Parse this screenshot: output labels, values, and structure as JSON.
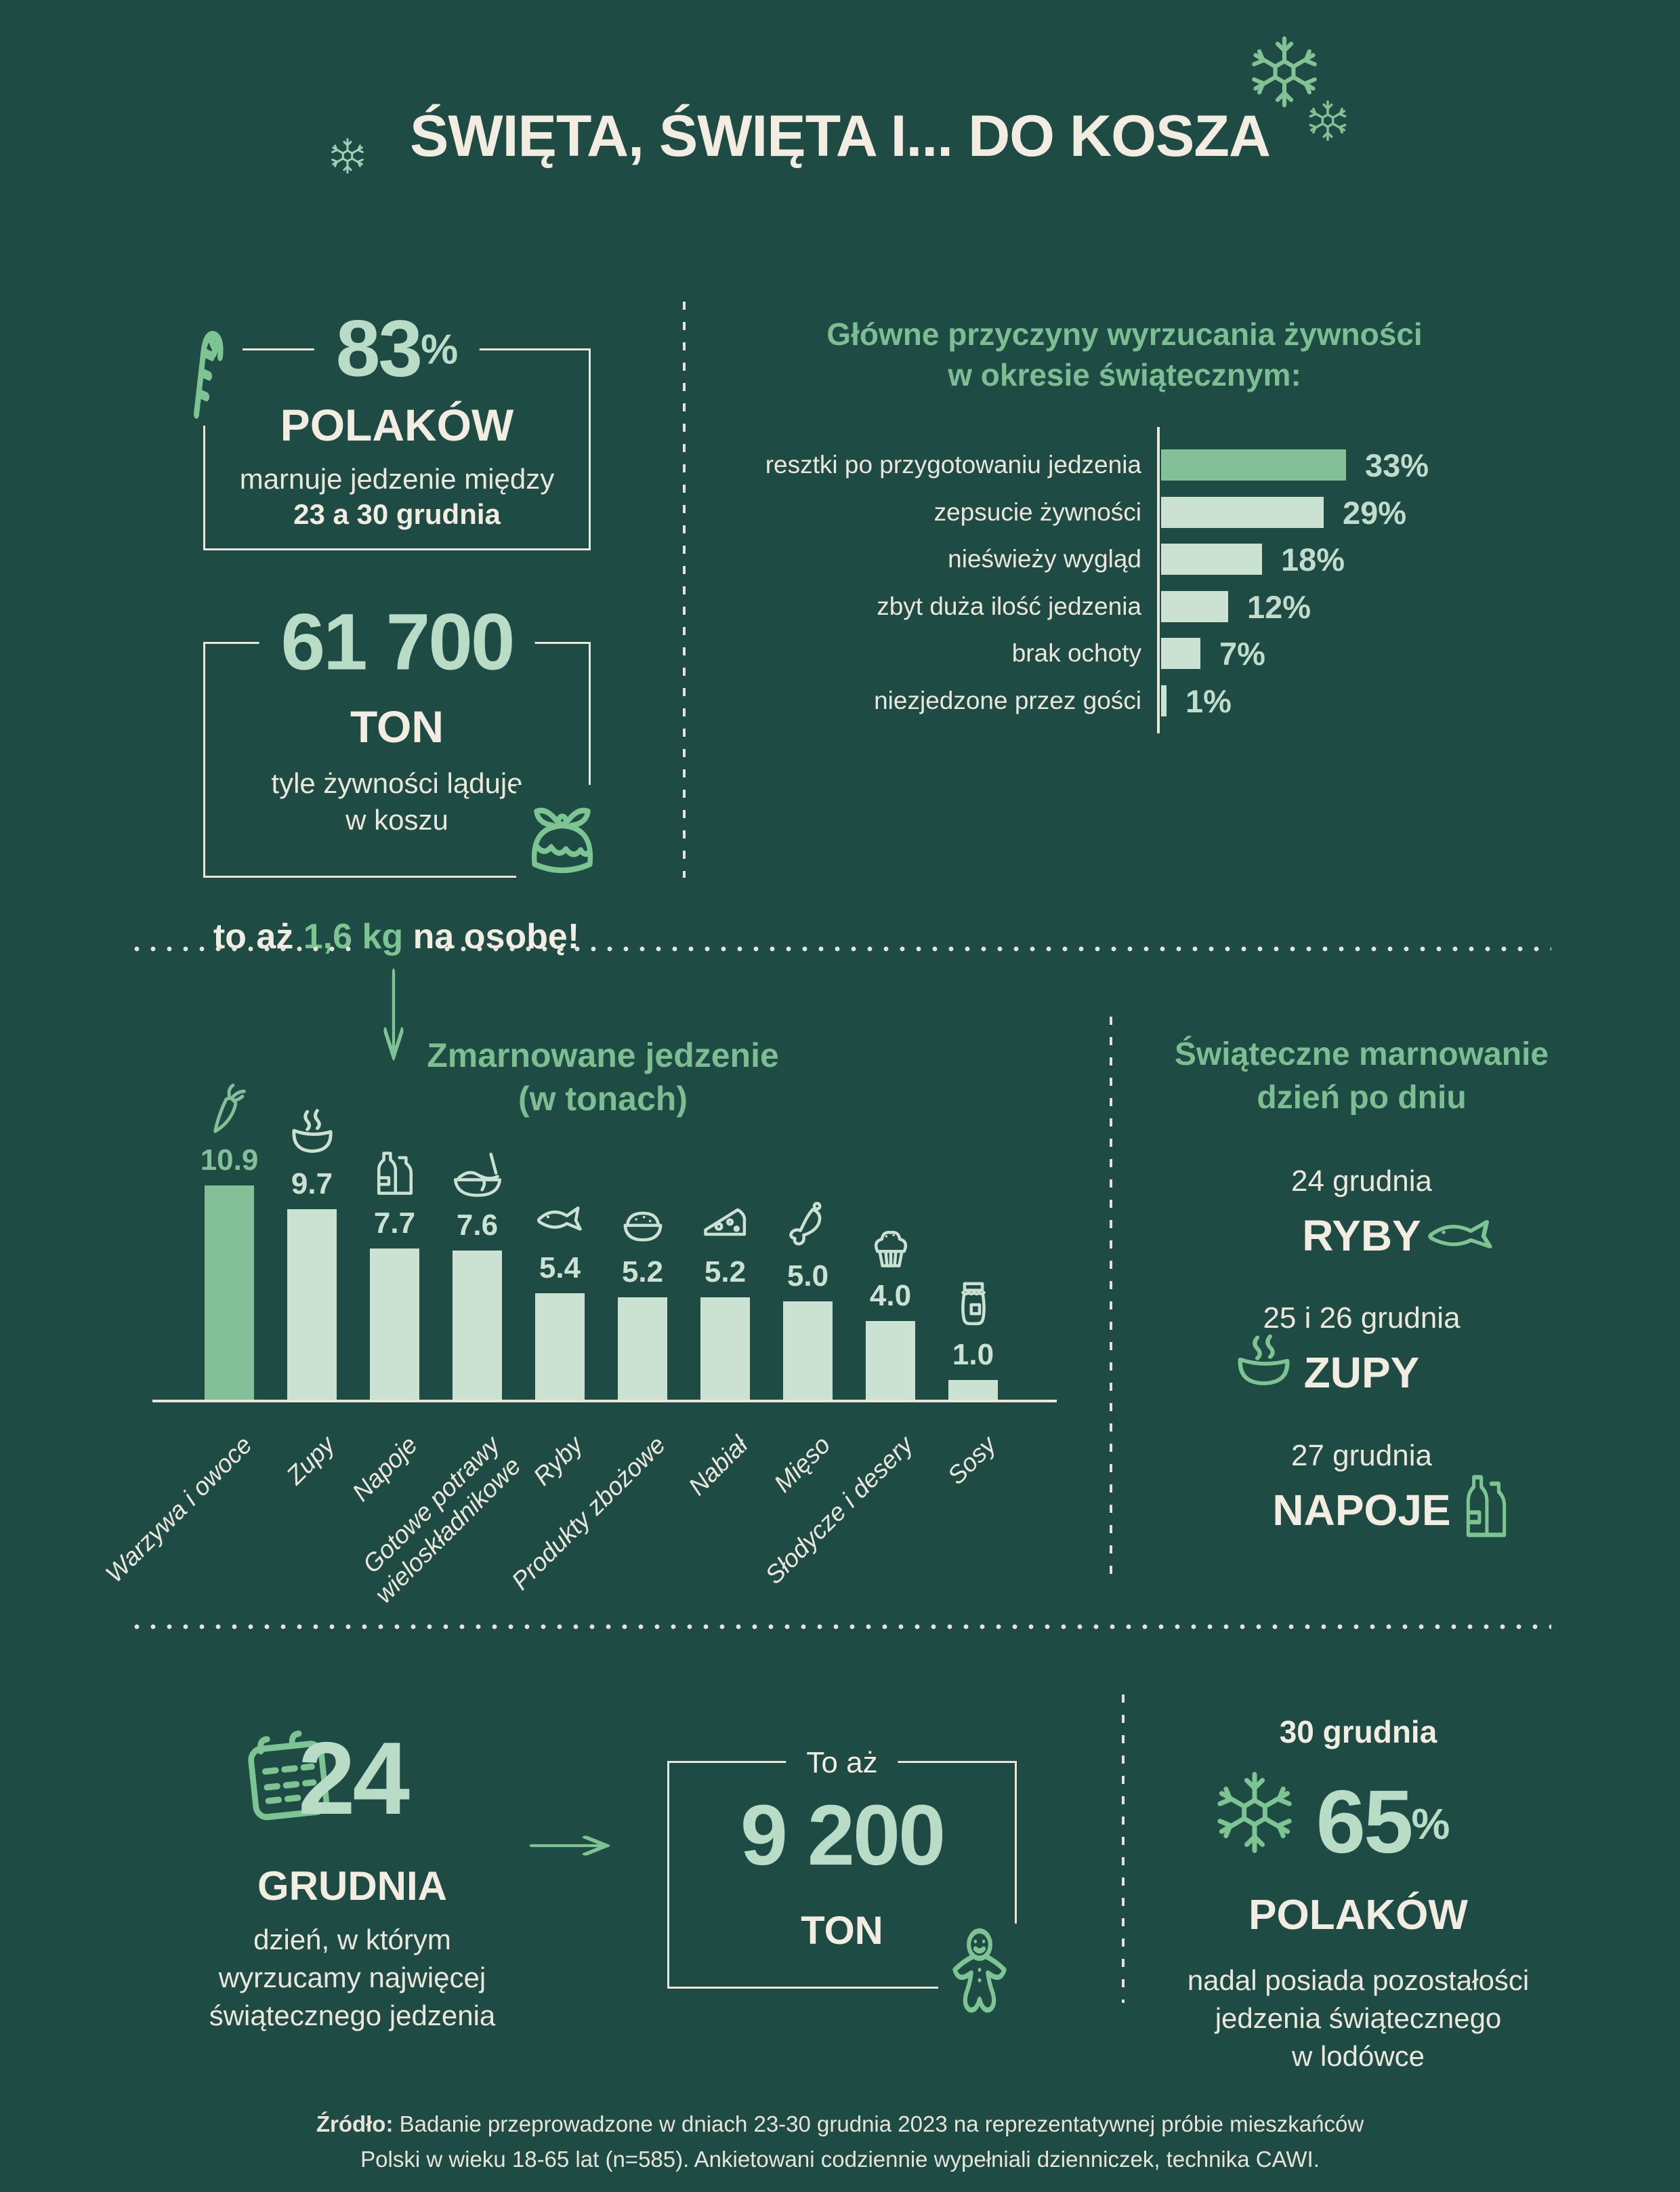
{
  "page": {
    "title": "ŚWIĘTA, ŚWIĘTA I... DO KOSZA"
  },
  "colors": {
    "background": "#1e4b43",
    "cream": "#f2ece1",
    "mint": "#b9dcc6",
    "pale_green_bar": "#cbe2d2",
    "medium_green_bar": "#83c098",
    "heading_green": "#7dbd92",
    "icon_green": "#7cc492"
  },
  "stats": {
    "polakow": {
      "value": "83",
      "percent_sign": "%",
      "label": "POLAKÓW",
      "line1": "marnuje jedzenie między",
      "line2": "23 a 30 grudnia"
    },
    "tons": {
      "value": "61 700",
      "unit": "TON",
      "line1": "tyle żywności ląduje",
      "line2": "w koszu"
    },
    "per_person": {
      "prefix": "to aż ",
      "highlight": "1,6 kg",
      "suffix": " na osobę!"
    }
  },
  "chart_data": [
    {
      "type": "bar",
      "orientation": "horizontal",
      "title": "Główne przyczyny wyrzucania żywności w okresie świątecznym:",
      "title_lines": [
        "Główne przyczyny wyrzucania żywności",
        "w okresie świątecznym:"
      ],
      "unit": "%",
      "xlim": [
        0,
        35
      ],
      "rows": [
        {
          "label": "resztki po przygotowaniu jedzenia",
          "value": 33,
          "display": "33%"
        },
        {
          "label": "zepsucie żywności",
          "value": 29,
          "display": "29%"
        },
        {
          "label": "nieświeży wygląd",
          "value": 18,
          "display": "18%"
        },
        {
          "label": "zbyt duża ilość jedzenia",
          "value": 12,
          "display": "12%"
        },
        {
          "label": "brak ochoty",
          "value": 7,
          "display": "7%"
        },
        {
          "label": "niezjedzone przez gości",
          "value": 1,
          "display": "1%"
        }
      ]
    },
    {
      "type": "bar",
      "orientation": "vertical",
      "title": "Zmarnowane jedzenie (w tonach)",
      "title_lines": [
        "Zmarnowane jedzenie",
        "(w tonach)"
      ],
      "unit": "tony",
      "ylim": [
        0,
        11
      ],
      "columns": [
        {
          "label": "Warzywa i owoce",
          "value": 10.9,
          "display": "10.9",
          "icon": "carrot-icon"
        },
        {
          "label": "Zupy",
          "value": 9.7,
          "display": "9.7",
          "icon": "soup-icon"
        },
        {
          "label": "Napoje",
          "value": 7.7,
          "display": "7.7",
          "icon": "bottles-icon"
        },
        {
          "label": "Gotowe potrawy\nwieloskładnikowe",
          "value": 7.6,
          "display": "7.6",
          "icon": "noodles-icon"
        },
        {
          "label": "Ryby",
          "value": 5.4,
          "display": "5.4",
          "icon": "fish-icon"
        },
        {
          "label": "Produkty zbożowe",
          "value": 5.2,
          "display": "5.2",
          "icon": "rice-bowl-icon"
        },
        {
          "label": "Nabiał",
          "value": 5.2,
          "display": "5.2",
          "icon": "cheese-icon"
        },
        {
          "label": "Mięso",
          "value": 5.0,
          "display": "5.0",
          "icon": "chicken-leg-icon"
        },
        {
          "label": "Słodycze i desery",
          "value": 4.0,
          "display": "4.0",
          "icon": "muffin-icon"
        },
        {
          "label": "Sosy",
          "value": 1.0,
          "display": "1.0",
          "icon": "jar-icon"
        }
      ]
    }
  ],
  "daily": {
    "title_lines": [
      "Świąteczne marnowanie",
      "dzień po dniu"
    ],
    "items": [
      {
        "date": "24 grudnia",
        "food": "RYBY",
        "icon": "fish-icon"
      },
      {
        "date": "25 i 26 grudnia",
        "food": "ZUPY",
        "icon": "soup-icon"
      },
      {
        "date": "27 grudnia",
        "food": "NAPOJE",
        "icon": "bottles-icon"
      }
    ]
  },
  "bottom": {
    "day24": {
      "number": "24",
      "month": "GRUDNIA",
      "lines": [
        "dzień, w którym",
        "wyrzucamy najwięcej",
        "świątecznego jedzenia"
      ]
    },
    "tons9200": {
      "intro": "To aż",
      "value": "9 200",
      "unit": "TON"
    },
    "day30": {
      "date": "30 grudnia",
      "value": "65",
      "percent_sign": "%",
      "label": "POLAKÓW",
      "lines": [
        "nadal posiada pozostałości",
        "jedzenia świątecznego",
        "w lodówce"
      ]
    }
  },
  "footer": {
    "bold": "Źródło:",
    "line1": " Badanie przeprowadzone w dniach 23-30 grudnia 2023 na reprezentatywnej próbie mieszkańców",
    "line2": "Polski w wieku 18-65 lat (n=585). Ankietowani codziennie wypełniali dzienniczek, technika CAWI."
  }
}
